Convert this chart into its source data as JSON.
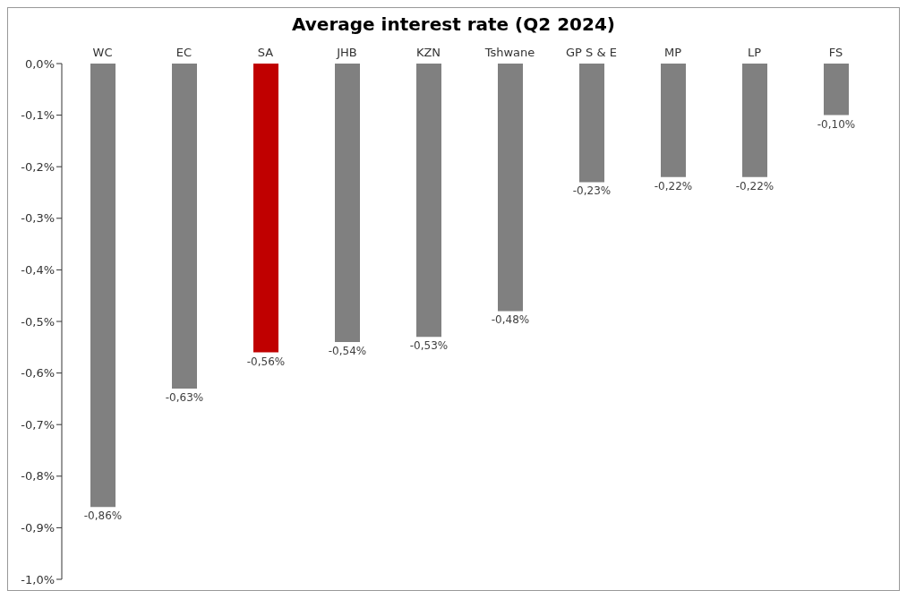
{
  "chart_data": {
    "type": "bar",
    "title": "Average interest rate (Q2 2024)",
    "categories": [
      "WC",
      "EC",
      "SA",
      "JHB",
      "KZN",
      "Tshwane",
      "GP S & E",
      "MP",
      "LP",
      "FS"
    ],
    "values": [
      -0.86,
      -0.63,
      -0.56,
      -0.54,
      -0.53,
      -0.48,
      -0.23,
      -0.22,
      -0.22,
      -0.1
    ],
    "colors": [
      "#808080",
      "#808080",
      "#c00000",
      "#808080",
      "#808080",
      "#808080",
      "#808080",
      "#808080",
      "#808080",
      "#808080"
    ],
    "value_labels": [
      "-0,86%",
      "-0,63%",
      "-0,56%",
      "-0,54%",
      "-0,53%",
      "-0,48%",
      "-0,23%",
      "-0,22%",
      "-0,22%",
      "-0,10%"
    ],
    "ylim": [
      -1.0,
      0.0
    ],
    "yticks": [
      {
        "value": 0.0,
        "label": "0,0%"
      },
      {
        "value": -0.1,
        "label": "-0,1%"
      },
      {
        "value": -0.2,
        "label": "-0,2%"
      },
      {
        "value": -0.3,
        "label": "-0,3%"
      },
      {
        "value": -0.4,
        "label": "-0,4%"
      },
      {
        "value": -0.5,
        "label": "-0,5%"
      },
      {
        "value": -0.6,
        "label": "-0,6%"
      },
      {
        "value": -0.7,
        "label": "-0,7%"
      },
      {
        "value": -0.8,
        "label": "-0,8%"
      },
      {
        "value": -0.9,
        "label": "-0,9%"
      },
      {
        "value": -1.0,
        "label": "-1,0%"
      }
    ],
    "grid": false,
    "legend": false
  }
}
